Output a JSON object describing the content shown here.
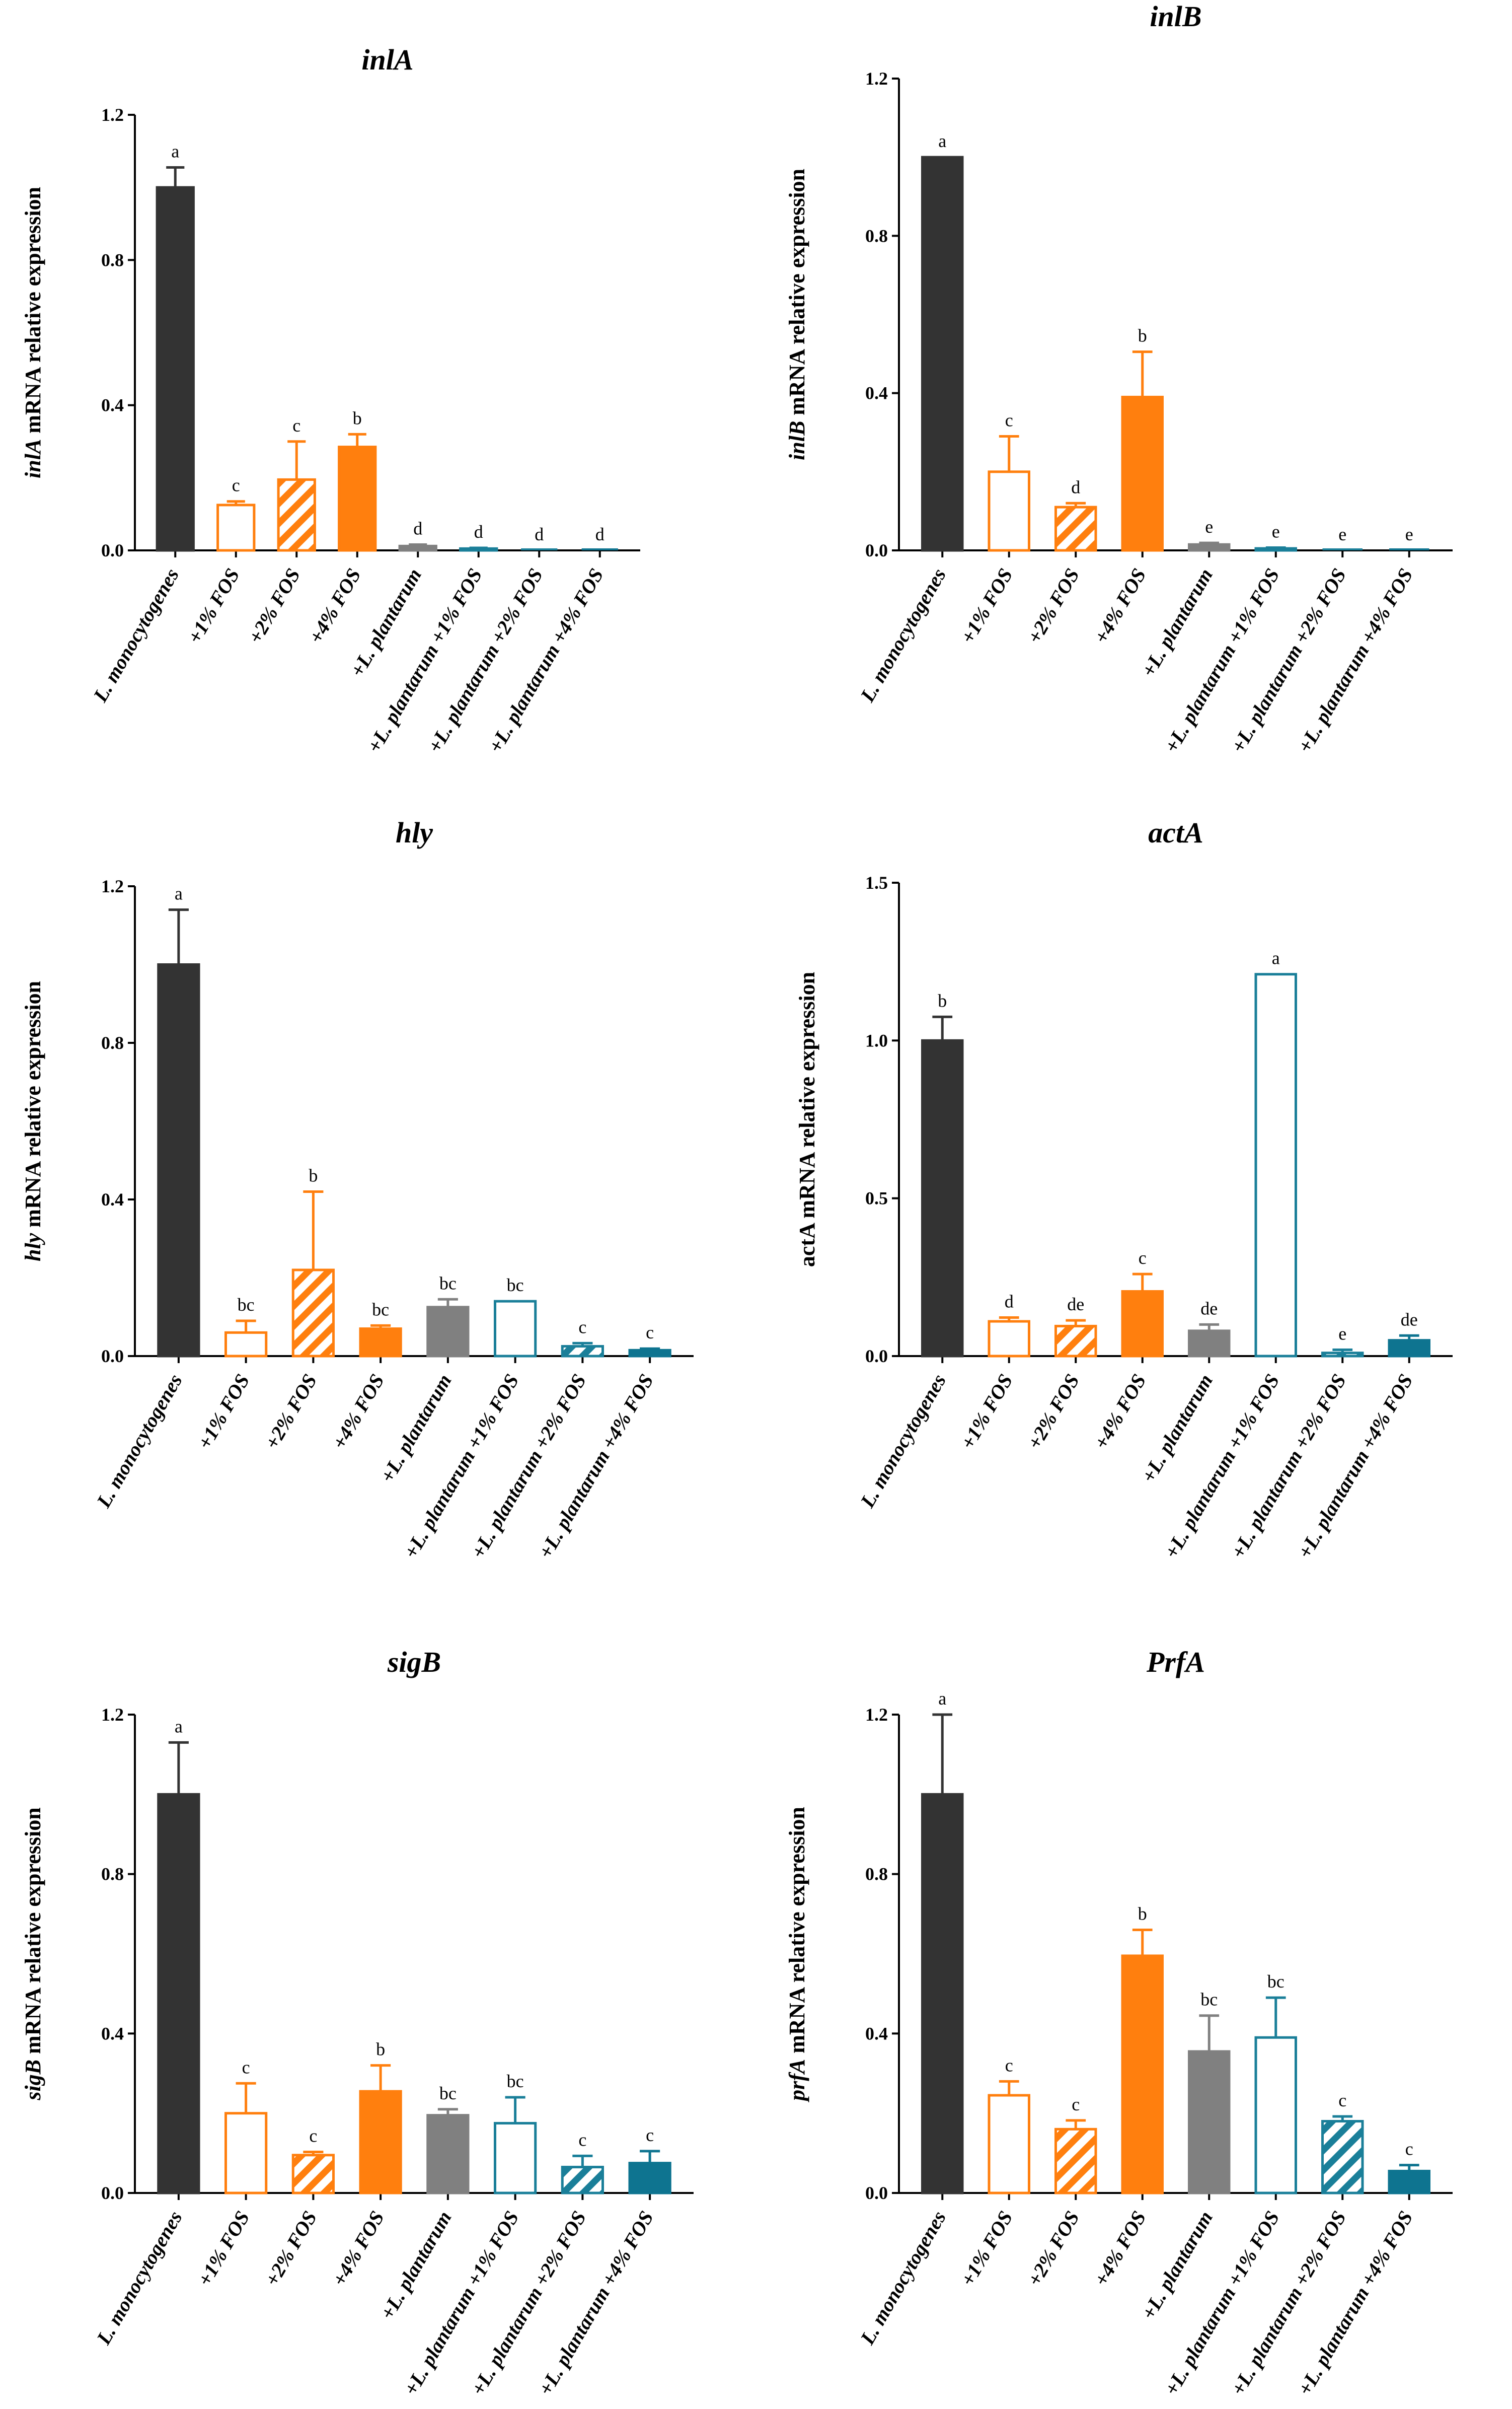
{
  "colors": {
    "dark": "#333333",
    "orange": "#FF7F0E",
    "gray": "#808080",
    "teal": "#1A7F99",
    "tealdark": "#0E7490"
  },
  "categories": [
    "L. monocytogenes",
    "+1% FOS",
    "+2% FOS",
    "+4% FOS",
    "+L. plantarum",
    "+L. plantarum +1% FOS",
    "+L. plantarum +2% FOS",
    "+L. plantarum +4% FOS"
  ],
  "bar_styles": [
    {
      "color": "dark",
      "fill": "solid"
    },
    {
      "color": "orange",
      "fill": "open"
    },
    {
      "color": "orange",
      "fill": "hatch"
    },
    {
      "color": "orange",
      "fill": "solid"
    },
    {
      "color": "gray",
      "fill": "solid"
    },
    {
      "color": "teal",
      "fill": "open"
    },
    {
      "color": "teal",
      "fill": "hatch"
    },
    {
      "color": "tealdark",
      "fill": "solid"
    }
  ],
  "chart_data": [
    {
      "type": "bar",
      "title": "inlA",
      "ylabel_gene": "inlA",
      "ylabel_gene_italic": true,
      "ylabel_rest": " mRNA relative expression",
      "ylim": [
        0,
        1.2
      ],
      "yticks": [
        0.0,
        0.4,
        0.8,
        1.2
      ],
      "ytick_labels": [
        "0.0",
        "0.4",
        "0.8",
        "1.2"
      ],
      "values": [
        1.0,
        0.125,
        0.195,
        0.285,
        0.012,
        0.005,
        0.0,
        0.0
      ],
      "errors": [
        0.055,
        0.01,
        0.105,
        0.035,
        0.004,
        0.002,
        0.0,
        0.0
      ],
      "letters": [
        "a",
        "c",
        "c",
        "b",
        "d",
        "d",
        "d",
        "d"
      ]
    },
    {
      "type": "bar",
      "title": "inlB",
      "ylabel_gene": "inlB",
      "ylabel_gene_italic": true,
      "ylabel_rest": " mRNA relative expression",
      "ylim": [
        0,
        1.2
      ],
      "yticks": [
        0.0,
        0.4,
        0.8,
        1.2
      ],
      "ytick_labels": [
        "0.0",
        "0.4",
        "0.8",
        "1.2"
      ],
      "values": [
        1.0,
        0.2,
        0.11,
        0.39,
        0.015,
        0.005,
        0.0,
        0.0
      ],
      "errors": [
        0.0,
        0.09,
        0.01,
        0.115,
        0.004,
        0.002,
        0.0,
        0.0
      ],
      "letters": [
        "a",
        "c",
        "d",
        "b",
        "e",
        "e",
        "e",
        "e"
      ]
    },
    {
      "type": "bar",
      "title": "hly",
      "ylabel_gene": "hly",
      "ylabel_gene_italic": true,
      "ylabel_rest": " mRNA relative expression",
      "ylim": [
        0,
        1.2
      ],
      "yticks": [
        0.0,
        0.4,
        0.8,
        1.2
      ],
      "ytick_labels": [
        "0.0",
        "0.4",
        "0.8",
        "1.2"
      ],
      "values": [
        1.0,
        0.06,
        0.22,
        0.07,
        0.125,
        0.14,
        0.025,
        0.015
      ],
      "errors": [
        0.14,
        0.03,
        0.2,
        0.008,
        0.02,
        0.0,
        0.008,
        0.004
      ],
      "letters": [
        "a",
        "bc",
        "b",
        "bc",
        "bc",
        "bc",
        "c",
        "c"
      ]
    },
    {
      "type": "bar",
      "title": "actA",
      "ylabel_gene": "actA",
      "ylabel_gene_italic": false,
      "ylabel_rest": " mRNA relative expression",
      "ylim": [
        0,
        1.5
      ],
      "yticks": [
        0.0,
        0.5,
        1.0,
        1.5
      ],
      "ytick_labels": [
        "0.0",
        "0.5",
        "1.0",
        "1.5"
      ],
      "values": [
        1.0,
        0.11,
        0.095,
        0.205,
        0.08,
        1.21,
        0.01,
        0.05
      ],
      "errors": [
        0.075,
        0.012,
        0.018,
        0.055,
        0.02,
        0.0,
        0.01,
        0.015
      ],
      "letters": [
        "b",
        "d",
        "de",
        "c",
        "de",
        "a",
        "e",
        "de"
      ]
    },
    {
      "type": "bar",
      "title": "sigB",
      "ylabel_gene": "sigB",
      "ylabel_gene_italic": true,
      "ylabel_rest": " mRNA relative expression",
      "ylim": [
        0,
        1.2
      ],
      "yticks": [
        0.0,
        0.4,
        0.8,
        1.2
      ],
      "ytick_labels": [
        "0.0",
        "0.4",
        "0.8",
        "1.2"
      ],
      "values": [
        1.0,
        0.2,
        0.095,
        0.255,
        0.195,
        0.175,
        0.065,
        0.075
      ],
      "errors": [
        0.13,
        0.075,
        0.008,
        0.065,
        0.015,
        0.065,
        0.028,
        0.03
      ],
      "letters": [
        "a",
        "c",
        "c",
        "b",
        "bc",
        "bc",
        "c",
        "c"
      ]
    },
    {
      "type": "bar",
      "title": "PrfA",
      "ylabel_gene": "prfA",
      "ylabel_gene_italic": true,
      "ylabel_rest": " mRNA relative expression",
      "ylim": [
        0,
        1.2
      ],
      "yticks": [
        0.0,
        0.4,
        0.8,
        1.2
      ],
      "ytick_labels": [
        "0.0",
        "0.4",
        "0.8",
        "1.2"
      ],
      "values": [
        1.0,
        0.245,
        0.16,
        0.595,
        0.355,
        0.39,
        0.18,
        0.055
      ],
      "errors": [
        0.2,
        0.035,
        0.022,
        0.065,
        0.09,
        0.1,
        0.012,
        0.015
      ],
      "letters": [
        "a",
        "c",
        "c",
        "b",
        "bc",
        "bc",
        "c",
        "c"
      ]
    }
  ]
}
